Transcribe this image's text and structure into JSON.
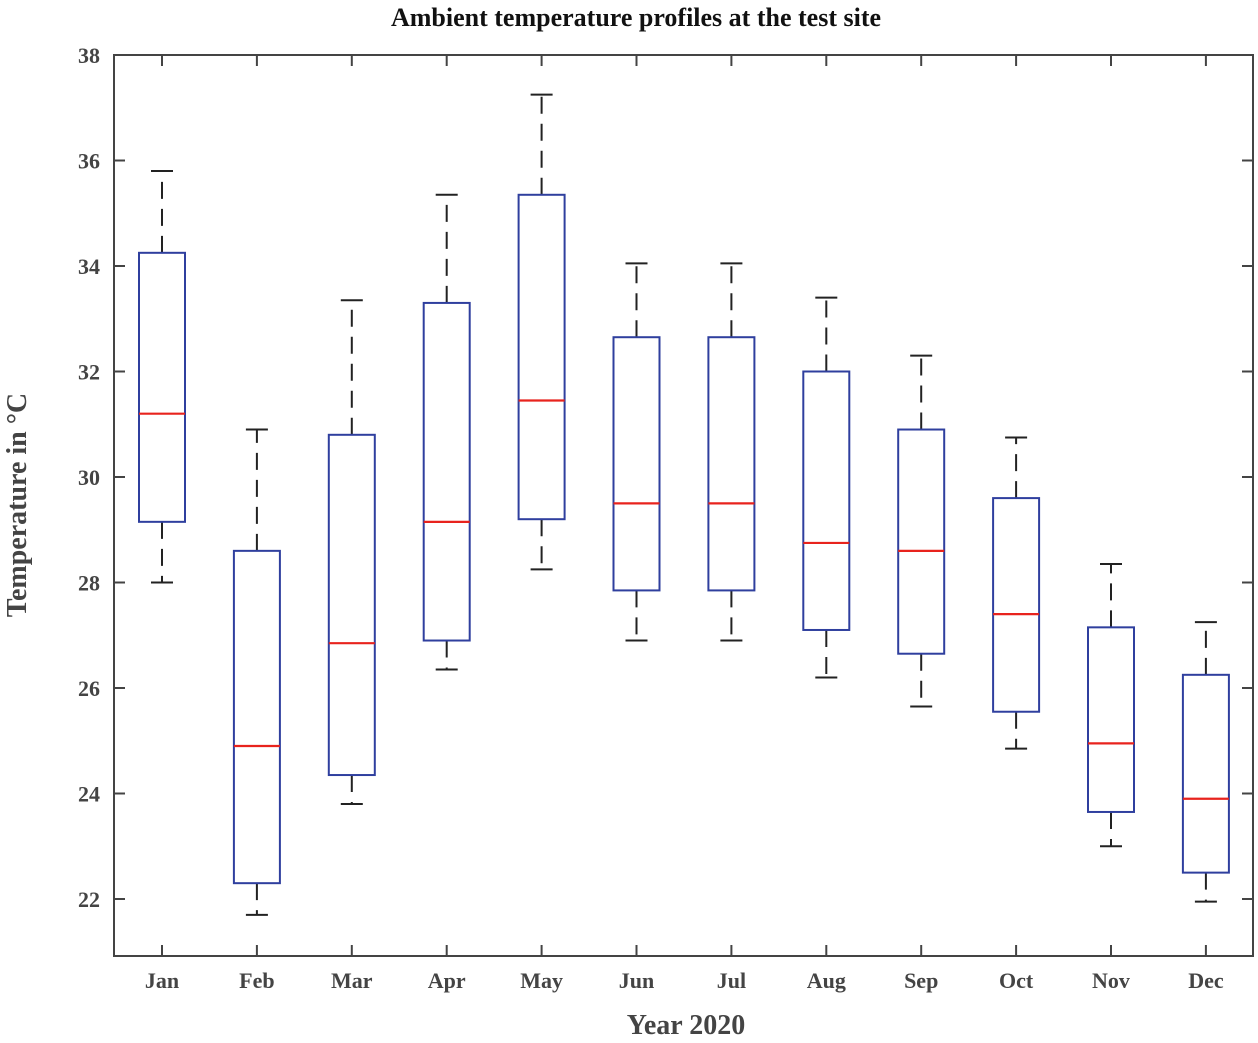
{
  "chart_data": {
    "type": "boxplot",
    "title": "Ambient temperature profiles at the test site",
    "xlabel": "Year 2020",
    "ylabel": "Temperature in °C",
    "ylim": [
      21,
      38
    ],
    "yticks": [
      22,
      24,
      26,
      28,
      30,
      32,
      34,
      36,
      38
    ],
    "grid": false,
    "categories": [
      "Jan",
      "Feb",
      "Mar",
      "Apr",
      "May",
      "Jun",
      "Jul",
      "Aug",
      "Sep",
      "Oct",
      "Nov",
      "Dec"
    ],
    "boxes": [
      {
        "label": "Jan",
        "min": 28.0,
        "q1": 29.15,
        "median": 31.2,
        "q3": 34.25,
        "max": 35.8
      },
      {
        "label": "Feb",
        "min": 21.7,
        "q1": 22.3,
        "median": 24.9,
        "q3": 28.6,
        "max": 30.9
      },
      {
        "label": "Mar",
        "min": 23.8,
        "q1": 24.35,
        "median": 26.85,
        "q3": 30.8,
        "max": 33.35
      },
      {
        "label": "Apr",
        "min": 26.35,
        "q1": 26.9,
        "median": 29.15,
        "q3": 33.3,
        "max": 35.35
      },
      {
        "label": "May",
        "min": 28.25,
        "q1": 29.2,
        "median": 31.45,
        "q3": 35.35,
        "max": 37.25
      },
      {
        "label": "Jun",
        "min": 26.9,
        "q1": 27.85,
        "median": 29.5,
        "q3": 32.65,
        "max": 34.05
      },
      {
        "label": "Jul",
        "min": 26.9,
        "q1": 27.85,
        "median": 29.5,
        "q3": 32.65,
        "max": 34.05
      },
      {
        "label": "Aug",
        "min": 26.2,
        "q1": 27.1,
        "median": 28.75,
        "q3": 32.0,
        "max": 33.4
      },
      {
        "label": "Sep",
        "min": 25.65,
        "q1": 26.65,
        "median": 28.6,
        "q3": 30.9,
        "max": 32.3
      },
      {
        "label": "Oct",
        "min": 24.85,
        "q1": 25.55,
        "median": 27.4,
        "q3": 29.6,
        "max": 30.75
      },
      {
        "label": "Nov",
        "min": 23.0,
        "q1": 23.65,
        "median": 24.95,
        "q3": 27.15,
        "max": 28.35
      },
      {
        "label": "Dec",
        "min": 21.95,
        "q1": 22.5,
        "median": 23.9,
        "q3": 26.25,
        "max": 27.25
      }
    ],
    "colors": {
      "box": "#2f3f9e",
      "median": "#e8231d",
      "whisker": "#222222",
      "axes": "#444444"
    }
  }
}
